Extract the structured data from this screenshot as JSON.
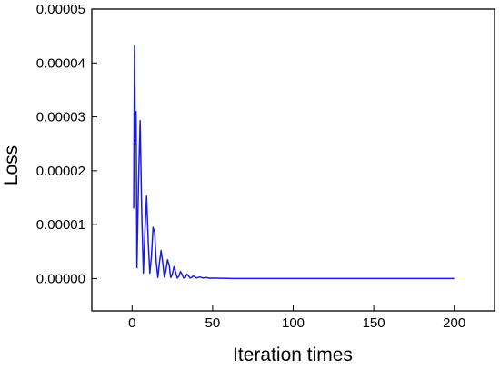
{
  "chart_data": {
    "type": "line",
    "title": "",
    "xlabel": "Iteration times",
    "ylabel": "Loss",
    "xlim": [
      -25,
      225
    ],
    "ylim": [
      -6e-06,
      5e-05
    ],
    "x_ticks": [
      0,
      50,
      100,
      150,
      200
    ],
    "x_tick_labels": [
      "0",
      "50",
      "100",
      "150",
      "200"
    ],
    "y_ticks": [
      0.0,
      1e-05,
      2e-05,
      3e-05,
      4e-05,
      5e-05
    ],
    "y_tick_labels": [
      "0.00000",
      "0.00001",
      "0.00002",
      "0.00003",
      "0.00004",
      "0.00005"
    ],
    "grid": false,
    "legend": "none",
    "line_color": "#1a1aee",
    "series": [
      {
        "x": [
          1,
          1.5,
          2,
          2.5,
          3,
          4,
          5,
          6,
          7,
          8,
          9,
          10,
          11,
          12,
          13,
          14,
          15,
          16,
          17,
          18,
          19,
          20,
          21,
          22,
          23,
          24,
          25,
          26,
          27,
          28,
          29,
          30,
          31,
          32,
          33,
          34,
          35,
          36,
          37,
          38,
          39,
          40,
          42,
          44,
          46,
          48,
          50,
          55,
          60,
          65,
          70,
          80,
          100,
          150,
          200
        ],
        "y": [
          1.3e-05,
          4.32e-05,
          2.5e-05,
          3.1e-05,
          2e-06,
          1.8e-05,
          2.93e-05,
          1.2e-05,
          1e-06,
          9e-06,
          1.53e-05,
          7e-06,
          1e-06,
          4e-06,
          9.5e-06,
          8.5e-06,
          3e-06,
          2e-07,
          3e-06,
          5.2e-06,
          3e-06,
          3e-07,
          1.5e-06,
          3.5e-06,
          2.5e-06,
          2e-07,
          8e-07,
          2.2e-06,
          1.2e-06,
          1e-07,
          4e-07,
          1.3e-06,
          8e-07,
          1e-07,
          2e-07,
          8e-07,
          5e-07,
          1e-07,
          2e-07,
          5e-07,
          3e-07,
          1e-07,
          3e-07,
          1e-07,
          2e-07,
          5e-08,
          1e-07,
          5e-08,
          2e-08,
          1e-08,
          0.0,
          0.0,
          0.0,
          0.0,
          0.0
        ]
      }
    ]
  }
}
